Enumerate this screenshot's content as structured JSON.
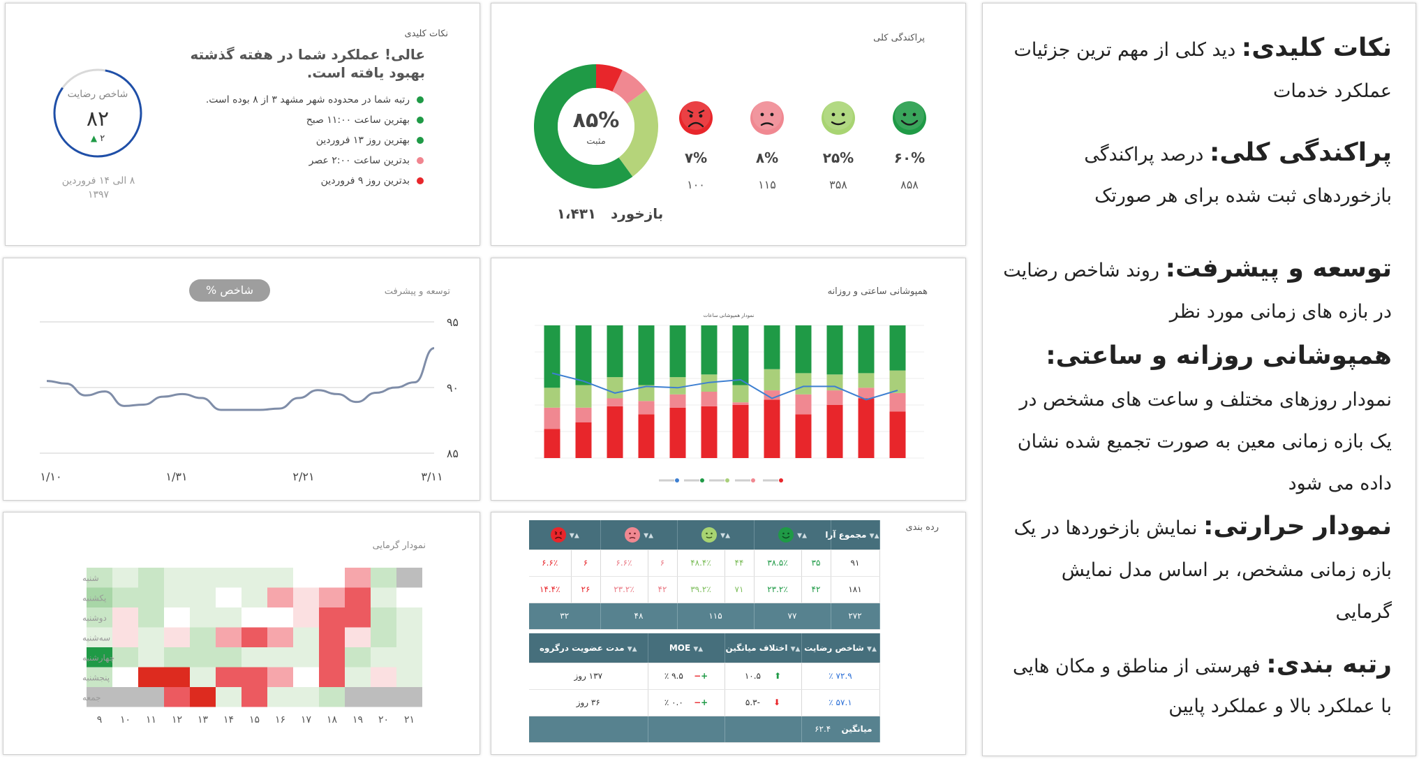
{
  "key_points": {
    "title": "نکات کلیدی",
    "gauge_label": "شاخص رضایت",
    "gauge_value": "۸۲",
    "gauge_delta": "۲",
    "range_line1": "۸ الی ۱۴ فروردین",
    "range_line2": "۱۳۹۷",
    "headline_line1": "عالی! عملکرد شما در هفته گذشته",
    "headline_line2": "بهبود یافته است.",
    "items": [
      {
        "text": "رتبه شما در محدوده شهر مشهد ۳ از ۸ بوده است.",
        "color": "#1f9a46"
      },
      {
        "text": "بهترین ساعت  ۱۱:۰۰ صبح",
        "color": "#1f9a46"
      },
      {
        "text": "بهترین روز ۱۳ فروردین",
        "color": "#1f9a46"
      },
      {
        "text": "بدترین ساعت  ۲:۰۰ عصر",
        "color": "#f0858f"
      },
      {
        "text": "بدترین روز ۹ فروردین",
        "color": "#e8262b"
      }
    ]
  },
  "dispersion": {
    "title": "پراکندگی کلی",
    "faces": [
      {
        "icon": "very-happy-face-icon",
        "color": "#1f9a46",
        "pct": "۶۰%",
        "count": "۸۵۸"
      },
      {
        "icon": "happy-face-icon",
        "color": "#a8d472",
        "pct": "۲۵%",
        "count": "۳۵۸"
      },
      {
        "icon": "sad-face-icon",
        "color": "#f08891",
        "pct": "۸%",
        "count": "۱۱۵"
      },
      {
        "icon": "angry-face-icon",
        "color": "#e8262b",
        "pct": "۷%",
        "count": "۱۰۰"
      }
    ],
    "donut_pct": "۸۵%",
    "donut_sub": "مثبت",
    "feedback_label": "بازخورد",
    "feedback_value": "۱،۴۳۱",
    "donut_segments": [
      {
        "value": 60,
        "color": "#1f9a46"
      },
      {
        "value": 25,
        "color": "#b5d47a"
      },
      {
        "value": 8,
        "color": "#f08891"
      },
      {
        "value": 7,
        "color": "#e8262b"
      }
    ]
  },
  "growth": {
    "title": "توسعه و پیشرفت",
    "pill": "شاخص %",
    "yticks": [
      "۹۵",
      "۹۰",
      "۸۵"
    ],
    "xticks": [
      "۱/۱۰",
      "۱/۳۱",
      "۲/۲۱",
      "۳/۱۱"
    ],
    "chart_data": {
      "type": "line",
      "ylim": [
        85,
        95
      ],
      "values": [
        90.5,
        90.3,
        89.4,
        89.7,
        88.6,
        88.7,
        89.3,
        89.5,
        89.2,
        88.3,
        88.3,
        88.3,
        88.4,
        89.2,
        89.8,
        89.5,
        88.9,
        89.6,
        90.0,
        90.4,
        93.0
      ]
    }
  },
  "coverage": {
    "title": "همپوشانی ساعتی و روزانه",
    "chart_title": "نمودار همپوشانی ساعات",
    "chart_data": {
      "type": "bar",
      "stacked": true,
      "bars": [
        {
          "red": 22,
          "pink": 16,
          "lgreen": 15,
          "green": 47,
          "line": 64
        },
        {
          "red": 27,
          "pink": 11,
          "lgreen": 17,
          "green": 45,
          "line": 58
        },
        {
          "red": 39,
          "pink": 6,
          "lgreen": 16,
          "green": 39,
          "line": 49
        },
        {
          "red": 33,
          "pink": 10,
          "lgreen": 12,
          "green": 45,
          "line": 54
        },
        {
          "red": 38,
          "pink": 10,
          "lgreen": 13,
          "green": 39,
          "line": 53
        },
        {
          "red": 39,
          "pink": 11,
          "lgreen": 13,
          "green": 37,
          "line": 57
        },
        {
          "red": 40,
          "pink": 2,
          "lgreen": 13,
          "green": 45,
          "line": 59
        },
        {
          "red": 44,
          "pink": 7,
          "lgreen": 16,
          "green": 33,
          "line": 45
        },
        {
          "red": 33,
          "pink": 15,
          "lgreen": 16,
          "green": 36,
          "line": 54
        },
        {
          "red": 40,
          "pink": 11,
          "lgreen": 12,
          "green": 37,
          "line": 54
        },
        {
          "red": 45,
          "pink": 8,
          "lgreen": 11,
          "green": 36,
          "line": 44
        },
        {
          "red": 35,
          "pink": 14,
          "lgreen": 17,
          "green": 34,
          "line": 51
        }
      ]
    }
  },
  "heatmap": {
    "title": "نمودار گرمایی",
    "rows": [
      "شنبه",
      "یکشنبه",
      "دوشنبه",
      "سه‌شنبه",
      "چهارشنبه",
      "پنجشنبه",
      "جمعه"
    ],
    "cols": [
      "۹",
      "۱۰",
      "۱۱",
      "۱۲",
      "۱۳",
      "۱۴",
      "۱۵",
      "۱۶",
      "۱۷",
      "۱۸",
      "۱۹",
      "۲۰",
      "۲۱"
    ],
    "chart_data": {
      "type": "heatmap",
      "values": [
        [
          2,
          1,
          2,
          1,
          1,
          1,
          1,
          1,
          0,
          0,
          -2,
          2,
          null
        ],
        [
          3,
          2,
          2,
          1,
          1,
          0,
          1,
          -2,
          -1,
          -2,
          -3,
          1,
          0
        ],
        [
          2,
          -1,
          2,
          0,
          1,
          1,
          0,
          0,
          -1,
          -3,
          -3,
          2,
          1
        ],
        [
          1,
          -1,
          1,
          -1,
          2,
          -2,
          -3,
          -2,
          1,
          -3,
          -1,
          2,
          1
        ],
        [
          4,
          2,
          1,
          2,
          2,
          2,
          1,
          1,
          1,
          -3,
          2,
          1,
          1
        ],
        [
          2,
          0,
          -4,
          -4,
          1,
          -3,
          -3,
          -2,
          0,
          -3,
          1,
          -1,
          1
        ],
        [
          null,
          null,
          null,
          -3,
          -4,
          1,
          -3,
          1,
          1,
          2,
          null,
          null,
          null
        ]
      ]
    }
  },
  "ranking": {
    "title": "رده بندی",
    "top_headers": {
      "total": "مجموع آرا"
    },
    "rows": [
      {
        "total": "۹۱",
        "g_pct": "۳۸.۵٪",
        "g_n": "۳۵",
        "lg_pct": "۴۸.۴٪",
        "lg_n": "۴۴",
        "p_pct": "۶.۶٪",
        "p_n": "۶",
        "r_pct": "۶.۶٪",
        "r_n": "۶"
      },
      {
        "total": "۱۸۱",
        "g_pct": "۲۳.۲٪",
        "g_n": "۴۲",
        "lg_pct": "۳۹.۲٪",
        "lg_n": "۷۱",
        "p_pct": "۲۳.۲٪",
        "p_n": "۴۲",
        "r_pct": "۱۴.۴٪",
        "r_n": "۲۶"
      }
    ],
    "sum_row": {
      "total": "۲۷۲",
      "g": "۷۷",
      "lg": "۱۱۵",
      "p": "۴۸",
      "r": "۳۲"
    },
    "headers2": {
      "satisfaction": "شاخص رضایت",
      "avg_diff": "اختلاف میانگین",
      "moe": "MOE",
      "membership": "مدت عضویت درگروه"
    },
    "rows2": [
      {
        "satisfaction": "۷۲.۹ ٪",
        "diff": "۱۰.۵",
        "moe": "۹.۵ ٪",
        "membership": "۱۳۷ روز"
      },
      {
        "satisfaction": "۵۷.۱ ٪",
        "diff": "-۵.۳",
        "moe": "۰.۰ ٪",
        "membership": "۳۶ روز"
      }
    ],
    "avg_label": "میانگین",
    "avg_value": "۶۲.۴"
  },
  "text_panel": {
    "blocks": [
      {
        "head": "نکات کلیدی:",
        "body": "  دید کلی از مهم ترین جزئیات عملکرد خدمات"
      },
      {
        "head": "پراکندگی کلی:",
        "body": " درصد پراکندگی بازخوردهای ثبت شده برای هر صورتک"
      },
      {
        "head": "توسعه و پیشرفت:",
        "body": " روند شاخص رضایت در بازه های زمانی مورد نظر"
      },
      {
        "head": "همپوشانی روزانه و ساعتی:",
        "body": "  نمودار روزهای مختلف و ساعت های مشخص در یک بازه زمانی معین به صورت تجمیع شده نشان داده می شود"
      },
      {
        "head": "نمودار حرارتی:",
        "body": "  نمایش بازخوردها در یک بازه زمانی مشخص، بر اساس مدل نمایش گرمایی"
      },
      {
        "head": "رتبه بندی:",
        "body": " فهرستی از مناطق و مکان هایی با عملکرد بالا و عملکرد پایین"
      }
    ]
  }
}
